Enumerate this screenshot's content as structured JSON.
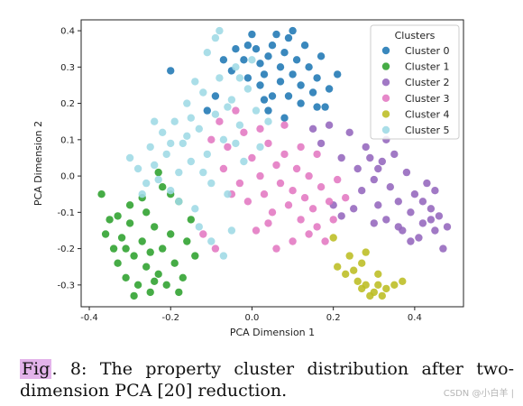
{
  "chart_data": {
    "type": "scatter",
    "title": "",
    "xlabel": "PCA Dimension 1",
    "ylabel": "PCA Dimension 2",
    "xlim": [
      -0.42,
      0.52
    ],
    "ylim": [
      -0.36,
      0.43
    ],
    "xticks": [
      "-0.4",
      "-0.2",
      "0.0",
      "0.2",
      "0.4"
    ],
    "yticks": [
      "-0.3",
      "-0.2",
      "-0.1",
      "0.0",
      "0.1",
      "0.2",
      "0.3",
      "0.4"
    ],
    "grid": false,
    "legend": {
      "title": "Clusters",
      "placement": "top-right"
    },
    "series": [
      {
        "name": "Cluster 0",
        "color": "#1f77b4",
        "points": [
          [
            -0.2,
            0.29
          ],
          [
            -0.07,
            0.32
          ],
          [
            -0.05,
            0.29
          ],
          [
            -0.04,
            0.35
          ],
          [
            -0.02,
            0.32
          ],
          [
            -0.01,
            0.27
          ],
          [
            0.0,
            0.39
          ],
          [
            0.01,
            0.35
          ],
          [
            0.02,
            0.31
          ],
          [
            0.02,
            0.25
          ],
          [
            0.03,
            0.28
          ],
          [
            0.04,
            0.33
          ],
          [
            0.05,
            0.36
          ],
          [
            0.05,
            0.22
          ],
          [
            0.06,
            0.39
          ],
          [
            0.07,
            0.3
          ],
          [
            0.07,
            0.26
          ],
          [
            0.08,
            0.34
          ],
          [
            0.09,
            0.38
          ],
          [
            0.09,
            0.22
          ],
          [
            0.1,
            0.28
          ],
          [
            0.11,
            0.32
          ],
          [
            0.12,
            0.25
          ],
          [
            0.12,
            0.2
          ],
          [
            0.13,
            0.36
          ],
          [
            0.14,
            0.3
          ],
          [
            0.15,
            0.23
          ],
          [
            0.16,
            0.27
          ],
          [
            0.17,
            0.33
          ],
          [
            0.18,
            0.19
          ],
          [
            -0.09,
            0.22
          ],
          [
            -0.11,
            0.18
          ],
          [
            0.04,
            0.18
          ],
          [
            0.19,
            0.24
          ],
          [
            0.21,
            0.28
          ],
          [
            0.08,
            0.16
          ],
          [
            0.03,
            0.21
          ],
          [
            -0.01,
            0.36
          ],
          [
            0.1,
            0.4
          ],
          [
            0.16,
            0.19
          ]
        ]
      },
      {
        "name": "Cluster 1",
        "color": "#2ca02c",
        "points": [
          [
            -0.37,
            -0.05
          ],
          [
            -0.36,
            -0.16
          ],
          [
            -0.35,
            -0.12
          ],
          [
            -0.34,
            -0.2
          ],
          [
            -0.33,
            -0.24
          ],
          [
            -0.32,
            -0.17
          ],
          [
            -0.31,
            -0.28
          ],
          [
            -0.3,
            -0.08
          ],
          [
            -0.3,
            -0.13
          ],
          [
            -0.29,
            -0.22
          ],
          [
            -0.28,
            -0.3
          ],
          [
            -0.27,
            -0.18
          ],
          [
            -0.26,
            -0.25
          ],
          [
            -0.26,
            -0.1
          ],
          [
            -0.25,
            -0.32
          ],
          [
            -0.24,
            -0.14
          ],
          [
            -0.23,
            -0.27
          ],
          [
            -0.22,
            -0.2
          ],
          [
            -0.21,
            -0.3
          ],
          [
            -0.2,
            -0.16
          ],
          [
            -0.19,
            -0.24
          ],
          [
            -0.18,
            -0.07
          ],
          [
            -0.17,
            -0.28
          ],
          [
            -0.16,
            -0.18
          ],
          [
            -0.15,
            -0.12
          ],
          [
            -0.22,
            -0.03
          ],
          [
            -0.2,
            -0.05
          ],
          [
            -0.27,
            -0.06
          ],
          [
            -0.33,
            -0.11
          ],
          [
            -0.29,
            -0.33
          ],
          [
            -0.24,
            -0.29
          ],
          [
            -0.18,
            -0.32
          ],
          [
            -0.14,
            -0.22
          ],
          [
            -0.23,
            0.01
          ],
          [
            -0.31,
            -0.2
          ],
          [
            -0.25,
            -0.21
          ]
        ]
      },
      {
        "name": "Cluster 2",
        "color": "#9467bd",
        "points": [
          [
            0.15,
            0.13
          ],
          [
            0.17,
            0.09
          ],
          [
            0.19,
            0.14
          ],
          [
            0.22,
            0.05
          ],
          [
            0.24,
            0.12
          ],
          [
            0.26,
            0.02
          ],
          [
            0.27,
            -0.04
          ],
          [
            0.28,
            0.08
          ],
          [
            0.3,
            -0.01
          ],
          [
            0.31,
            -0.08
          ],
          [
            0.32,
            0.04
          ],
          [
            0.33,
            -0.12
          ],
          [
            0.34,
            -0.03
          ],
          [
            0.35,
            0.06
          ],
          [
            0.36,
            -0.07
          ],
          [
            0.37,
            -0.15
          ],
          [
            0.38,
            0.01
          ],
          [
            0.39,
            -0.1
          ],
          [
            0.4,
            -0.05
          ],
          [
            0.41,
            -0.17
          ],
          [
            0.42,
            -0.13
          ],
          [
            0.43,
            -0.02
          ],
          [
            0.44,
            -0.09
          ],
          [
            0.45,
            -0.15
          ],
          [
            0.46,
            -0.11
          ],
          [
            0.47,
            -0.2
          ],
          [
            0.45,
            -0.04
          ],
          [
            0.42,
            -0.07
          ],
          [
            0.36,
            -0.14
          ],
          [
            0.3,
            -0.13
          ],
          [
            0.25,
            -0.09
          ],
          [
            0.22,
            -0.11
          ],
          [
            0.2,
            -0.08
          ],
          [
            0.29,
            0.05
          ],
          [
            0.33,
            0.1
          ],
          [
            0.31,
            0.02
          ],
          [
            0.39,
            -0.18
          ],
          [
            0.44,
            -0.12
          ],
          [
            0.48,
            -0.14
          ]
        ]
      },
      {
        "name": "Cluster 3",
        "color": "#e377c2",
        "points": [
          [
            -0.1,
            0.1
          ],
          [
            -0.08,
            0.15
          ],
          [
            -0.06,
            0.08
          ],
          [
            -0.04,
            0.18
          ],
          [
            -0.02,
            0.12
          ],
          [
            0.0,
            0.05
          ],
          [
            0.02,
            0.0
          ],
          [
            0.03,
            -0.05
          ],
          [
            0.04,
            0.09
          ],
          [
            0.05,
            -0.1
          ],
          [
            0.06,
            0.03
          ],
          [
            0.07,
            -0.02
          ],
          [
            0.08,
            0.06
          ],
          [
            0.09,
            -0.08
          ],
          [
            0.1,
            -0.04
          ],
          [
            0.11,
            0.02
          ],
          [
            0.12,
            -0.12
          ],
          [
            0.13,
            -0.06
          ],
          [
            0.14,
            0.0
          ],
          [
            0.15,
            -0.09
          ],
          [
            0.16,
            -0.14
          ],
          [
            0.17,
            -0.03
          ],
          [
            0.18,
            -0.18
          ],
          [
            0.19,
            -0.07
          ],
          [
            0.2,
            -0.12
          ],
          [
            0.21,
            -0.01
          ],
          [
            0.23,
            -0.06
          ],
          [
            -0.05,
            -0.05
          ],
          [
            -0.03,
            -0.02
          ],
          [
            -0.01,
            -0.07
          ],
          [
            0.01,
            -0.15
          ],
          [
            0.06,
            -0.2
          ],
          [
            0.1,
            -0.18
          ],
          [
            0.14,
            -0.16
          ],
          [
            -0.12,
            -0.16
          ],
          [
            -0.09,
            -0.2
          ],
          [
            0.04,
            -0.13
          ],
          [
            0.12,
            0.08
          ],
          [
            0.16,
            0.06
          ],
          [
            0.08,
            0.14
          ],
          [
            -0.07,
            0.02
          ],
          [
            0.02,
            0.13
          ]
        ]
      },
      {
        "name": "Cluster 4",
        "color": "#bcbd22",
        "points": [
          [
            0.2,
            -0.17
          ],
          [
            0.21,
            -0.25
          ],
          [
            0.23,
            -0.27
          ],
          [
            0.25,
            -0.26
          ],
          [
            0.26,
            -0.29
          ],
          [
            0.27,
            -0.31
          ],
          [
            0.28,
            -0.3
          ],
          [
            0.29,
            -0.33
          ],
          [
            0.3,
            -0.32
          ],
          [
            0.31,
            -0.3
          ],
          [
            0.32,
            -0.33
          ],
          [
            0.33,
            -0.31
          ],
          [
            0.35,
            -0.3
          ],
          [
            0.24,
            -0.22
          ],
          [
            0.27,
            -0.24
          ],
          [
            0.31,
            -0.27
          ],
          [
            0.37,
            -0.29
          ],
          [
            0.28,
            -0.21
          ]
        ]
      },
      {
        "name": "Cluster 5",
        "color": "#9edae5",
        "points": [
          [
            -0.3,
            0.05
          ],
          [
            -0.28,
            0.02
          ],
          [
            -0.26,
            -0.02
          ],
          [
            -0.25,
            0.08
          ],
          [
            -0.24,
            0.03
          ],
          [
            -0.22,
            0.12
          ],
          [
            -0.21,
            0.06
          ],
          [
            -0.2,
            -0.04
          ],
          [
            -0.19,
            0.15
          ],
          [
            -0.18,
            0.01
          ],
          [
            -0.17,
            0.09
          ],
          [
            -0.16,
            0.2
          ],
          [
            -0.15,
            0.04
          ],
          [
            -0.14,
            -0.09
          ],
          [
            -0.13,
            0.13
          ],
          [
            -0.12,
            0.23
          ],
          [
            -0.11,
            0.06
          ],
          [
            -0.1,
            -0.02
          ],
          [
            -0.09,
            0.17
          ],
          [
            -0.08,
            0.27
          ],
          [
            -0.07,
            0.1
          ],
          [
            -0.06,
            -0.05
          ],
          [
            -0.05,
            0.21
          ],
          [
            -0.04,
            0.3
          ],
          [
            -0.03,
            0.14
          ],
          [
            -0.02,
            0.04
          ],
          [
            -0.01,
            0.24
          ],
          [
            0.0,
            0.32
          ],
          [
            0.01,
            0.18
          ],
          [
            0.02,
            0.08
          ],
          [
            -0.13,
            -0.14
          ],
          [
            -0.1,
            -0.18
          ],
          [
            -0.07,
            -0.22
          ],
          [
            -0.05,
            -0.15
          ],
          [
            -0.11,
            0.34
          ],
          [
            -0.09,
            0.38
          ],
          [
            -0.08,
            0.4
          ],
          [
            -0.27,
            -0.05
          ],
          [
            -0.23,
            -0.01
          ],
          [
            -0.18,
            -0.07
          ],
          [
            -0.15,
            0.16
          ],
          [
            -0.12,
            0.01
          ],
          [
            -0.06,
            0.19
          ],
          [
            -0.03,
            0.27
          ],
          [
            -0.16,
            0.11
          ],
          [
            -0.2,
            0.09
          ],
          [
            -0.24,
            0.15
          ],
          [
            -0.14,
            0.26
          ],
          [
            -0.04,
            0.09
          ],
          [
            0.04,
            0.15
          ]
        ]
      }
    ]
  },
  "caption": {
    "fig_label": "Fig",
    "text": ". 8: The property cluster distribution after two-dimension PCA [20] reduction."
  },
  "watermark": "CSDN @小白羊 |"
}
